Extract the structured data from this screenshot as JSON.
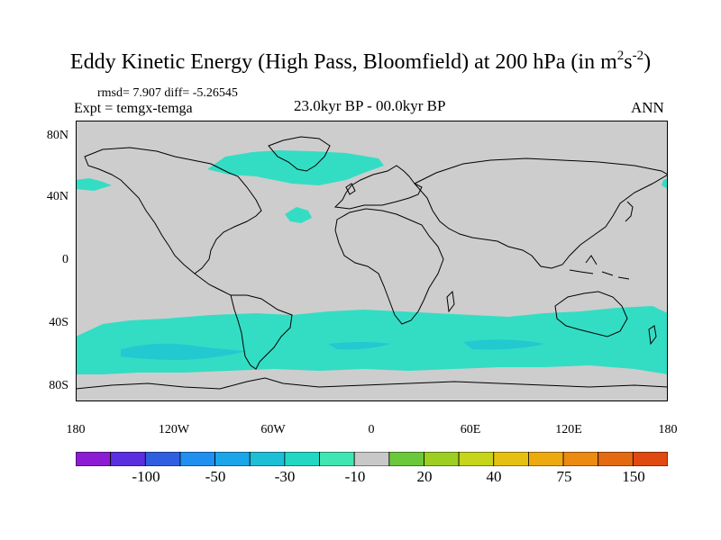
{
  "title_main": "Eddy Kinetic Energy (High Pass, Bloomfield) at 200 hPa (in m",
  "title_sup1": "2",
  "title_s": "s",
  "title_sup2": "-2",
  "title_end": ")",
  "stats": "rmsd= 7.907 diff= -5.26545",
  "expt": "Expt = temgx-temga",
  "period": "23.0kyr BP - 00.0kyr BP",
  "season": "ANN",
  "lat_labels": [
    "80N",
    "40N",
    "0",
    "40S",
    "80S"
  ],
  "lon_labels": [
    "180",
    "120W",
    "60W",
    "0",
    "60E",
    "120E",
    "180"
  ],
  "colorbar": {
    "labels": [
      "-100",
      "-50",
      "-30",
      "-10",
      "20",
      "40",
      "75",
      "150"
    ],
    "colors": [
      "#8c1cd4",
      "#5a2fe0",
      "#2f5fe0",
      "#1f8ff0",
      "#1aa6e8",
      "#1cbfd6",
      "#22d8c4",
      "#3fe6b4",
      "#c8c8c8",
      "#6ac83a",
      "#9ccf22",
      "#c6d41a",
      "#e6c010",
      "#ecaa10",
      "#ec8a12",
      "#e46a12",
      "#e04a10"
    ]
  },
  "map_colors": {
    "background": "#cdcdcd",
    "anomaly_light": "#33ddc4",
    "anomaly_dark": "#22c9d0",
    "coastline": "#000000"
  }
}
